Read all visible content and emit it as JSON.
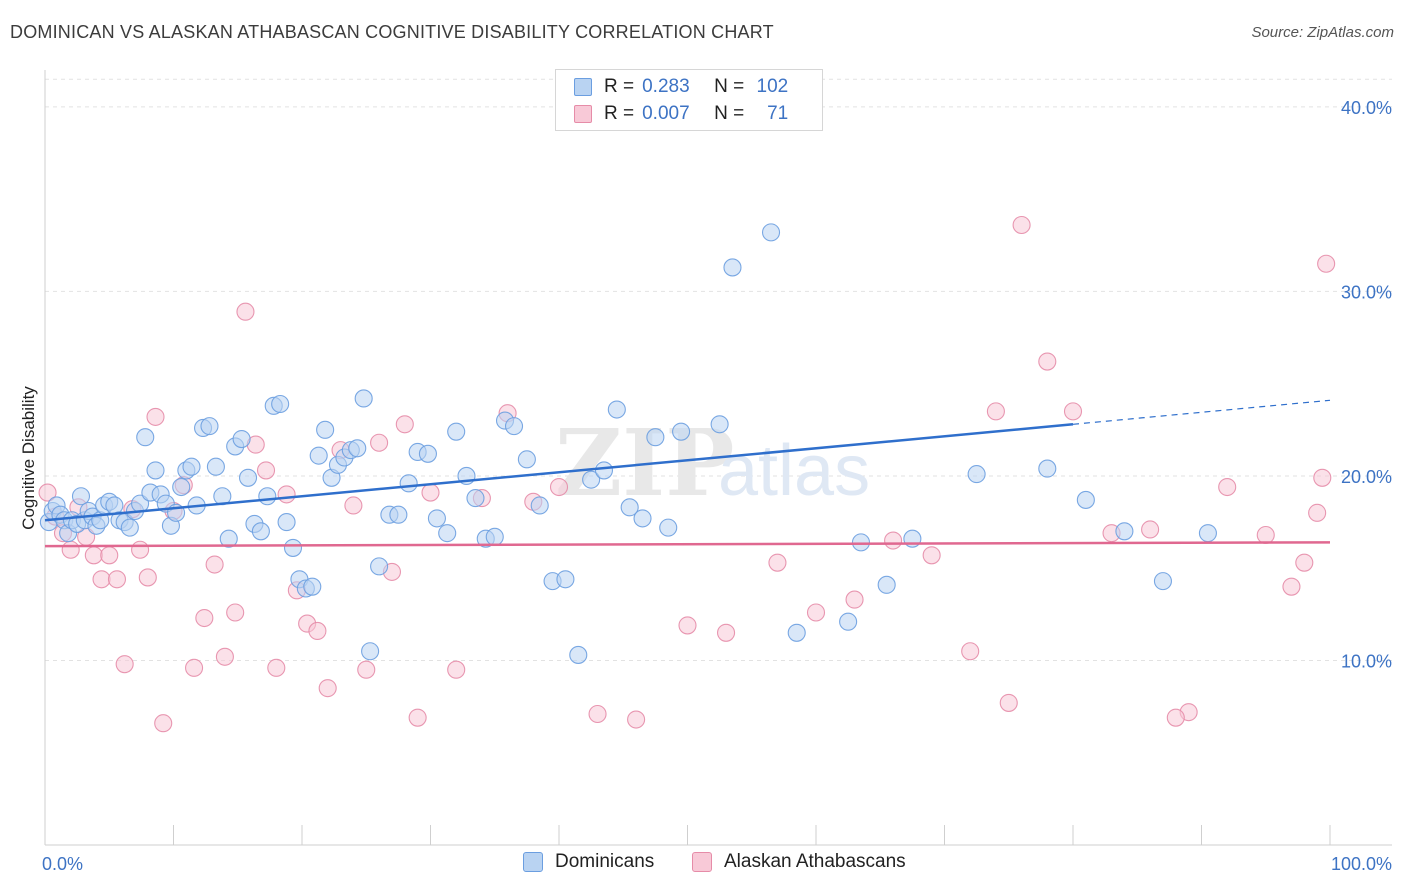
{
  "header": {
    "title": "DOMINICAN VS ALASKAN ATHABASCAN COGNITIVE DISABILITY CORRELATION CHART",
    "source": "Source: ZipAtlas.com"
  },
  "watermark": {
    "zip": "ZIP",
    "atlas": "atlas"
  },
  "legend": {
    "rows": [
      {
        "r_label": "R =",
        "r_value": "0.283",
        "n_label": "N =",
        "n_value": "102"
      },
      {
        "r_label": "R =",
        "r_value": "0.007",
        "n_label": "N =",
        "n_value": "71"
      }
    ]
  },
  "colors": {
    "dominicans_fill": "#b9d3f2",
    "dominicans_stroke": "#6b9ee0",
    "dominicans_line": "#2f6fcc",
    "alaskan_fill": "#f8c9d7",
    "alaskan_stroke": "#e68ca8",
    "alaskan_line": "#e06890",
    "tick_text": "#3d73c4",
    "grid": "#e2e2e2"
  },
  "chart_data": {
    "type": "scatter",
    "title": "DOMINICAN VS ALASKAN ATHABASCAN COGNITIVE DISABILITY CORRELATION CHART",
    "xlabel": "",
    "ylabel": "Cognitive Disability",
    "xlim": [
      0,
      100
    ],
    "ylim": [
      0,
      42
    ],
    "x_tick_labels": [
      "0.0%",
      "100.0%"
    ],
    "y_ticks": [
      10,
      20,
      30,
      40
    ],
    "y_tick_labels": [
      "10.0%",
      "20.0%",
      "30.0%",
      "40.0%"
    ],
    "grid": "horizontal dashed",
    "legend_placement": "top-center and bottom",
    "series": [
      {
        "name": "Dominicans",
        "stats": {
          "R": 0.283,
          "N": 102
        },
        "trend": {
          "x0": 0,
          "y0": 17.6,
          "x1": 80,
          "y1": 22.8,
          "dashed_to_x": 100,
          "dashed_to_y": 24.1
        },
        "x": [
          0.3,
          0.6,
          0.9,
          1.2,
          1.5,
          1.8,
          2.1,
          2.5,
          2.8,
          3.1,
          3.4,
          3.7,
          4.0,
          4.3,
          4.6,
          5.0,
          5.4,
          5.8,
          6.2,
          6.6,
          7.0,
          7.4,
          7.8,
          8.2,
          8.6,
          9.0,
          9.4,
          9.8,
          10.2,
          10.6,
          11.0,
          11.4,
          11.8,
          12.3,
          12.8,
          13.3,
          13.8,
          14.3,
          14.8,
          15.3,
          15.8,
          16.3,
          16.8,
          17.3,
          17.8,
          18.3,
          18.8,
          19.3,
          19.8,
          20.3,
          20.8,
          21.3,
          21.8,
          22.3,
          22.8,
          23.3,
          23.8,
          24.3,
          24.8,
          25.3,
          26.0,
          26.8,
          27.5,
          28.3,
          29.0,
          29.8,
          30.5,
          31.3,
          32.0,
          32.8,
          33.5,
          34.3,
          35.0,
          35.8,
          36.5,
          37.5,
          38.5,
          39.5,
          40.5,
          41.5,
          42.5,
          43.5,
          44.5,
          45.5,
          46.5,
          47.5,
          48.5,
          49.5,
          52.5,
          53.5,
          56.5,
          58.5,
          62.5,
          63.5,
          65.5,
          67.5,
          72.5,
          78.0,
          81.0,
          84.0,
          87.0,
          90.5
        ],
        "y": [
          17.5,
          18.1,
          18.4,
          17.9,
          17.6,
          16.9,
          17.6,
          17.4,
          18.9,
          17.6,
          18.1,
          17.8,
          17.3,
          17.6,
          18.4,
          18.6,
          18.4,
          17.6,
          17.5,
          17.2,
          18.1,
          18.5,
          22.1,
          19.1,
          20.3,
          19.0,
          18.5,
          17.3,
          18.0,
          19.4,
          20.3,
          20.5,
          18.4,
          22.6,
          22.7,
          20.5,
          18.9,
          16.6,
          21.6,
          22.0,
          19.9,
          17.4,
          17.0,
          18.9,
          23.8,
          23.9,
          17.5,
          16.1,
          14.4,
          13.9,
          14.0,
          21.1,
          22.5,
          19.9,
          20.6,
          21.0,
          21.4,
          21.5,
          24.2,
          10.5,
          15.1,
          17.9,
          17.9,
          19.6,
          21.3,
          21.2,
          17.7,
          16.9,
          22.4,
          20.0,
          18.8,
          16.6,
          16.7,
          23.0,
          22.7,
          20.9,
          18.4,
          14.3,
          14.4,
          10.3,
          19.8,
          20.3,
          23.6,
          18.3,
          17.7,
          22.1,
          17.2,
          22.4,
          22.8,
          31.3,
          33.2,
          11.5,
          12.1,
          16.4,
          14.1,
          16.6,
          20.1,
          20.4,
          18.7,
          17.0,
          14.3,
          16.9
        ]
      },
      {
        "name": "Alaskan Athabascans",
        "stats": {
          "R": 0.007,
          "N": 71
        },
        "trend": {
          "x0": 0,
          "y0": 16.2,
          "x1": 100,
          "y1": 16.4
        },
        "x": [
          0.2,
          0.8,
          1.4,
          2.0,
          2.6,
          3.2,
          3.8,
          4.4,
          5.0,
          5.6,
          6.2,
          6.8,
          7.4,
          8.0,
          8.6,
          9.2,
          10.0,
          10.8,
          11.6,
          12.4,
          13.2,
          14.0,
          14.8,
          15.6,
          16.4,
          17.2,
          18.0,
          18.8,
          19.6,
          20.4,
          21.2,
          22.0,
          23.0,
          24.0,
          25.0,
          26.0,
          27.0,
          28.0,
          29.0,
          30.0,
          32.0,
          34.0,
          36.0,
          38.0,
          40.0,
          43.0,
          46.0,
          50.0,
          53.0,
          57.0,
          60.0,
          63.0,
          66.0,
          69.0,
          72.0,
          75.0,
          78.0,
          80.0,
          83.0,
          86.0,
          89.0,
          92.0,
          95.0,
          97.0,
          98.0,
          99.0,
          99.4,
          99.7,
          74.0,
          88.0,
          76.0
        ],
        "y": [
          19.1,
          17.8,
          16.9,
          16.0,
          18.3,
          16.7,
          15.7,
          14.4,
          15.7,
          14.4,
          9.8,
          18.2,
          16.0,
          14.5,
          23.2,
          6.6,
          18.1,
          19.5,
          9.6,
          12.3,
          15.2,
          10.2,
          12.6,
          28.9,
          21.7,
          20.3,
          9.6,
          19.0,
          13.8,
          12.0,
          11.6,
          8.5,
          21.4,
          18.4,
          9.5,
          21.8,
          14.8,
          22.8,
          6.9,
          19.1,
          9.5,
          18.8,
          23.4,
          18.6,
          19.4,
          7.1,
          6.8,
          11.9,
          11.5,
          15.3,
          12.6,
          13.3,
          16.5,
          15.7,
          10.5,
          7.7,
          26.2,
          23.5,
          16.9,
          17.1,
          7.2,
          19.4,
          16.8,
          14.0,
          15.3,
          18.0,
          19.9,
          31.5,
          23.5,
          6.9,
          33.6
        ]
      }
    ]
  }
}
